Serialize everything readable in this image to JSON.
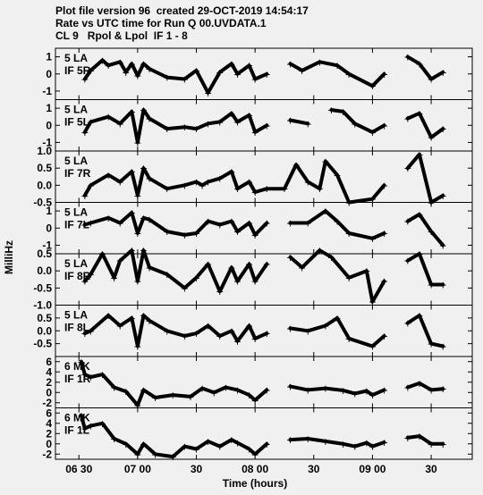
{
  "header": {
    "line1": "Plot file version 96  created 29-OCT-2019 14:54:17",
    "line2": "Rate vs UTC time for Run Q 00.UVDATA.1",
    "line3": "CL 9   Rpol & Lpol  IF 1 - 8"
  },
  "chart_data": {
    "type": "scatter",
    "xlabel": "Time (hours)",
    "ylabel": "MilliHz",
    "x_ticks": [
      "06 30",
      "07 00",
      "30",
      "08 00",
      "30",
      "09 00",
      "30"
    ],
    "x_tick_values": [
      6.5,
      7.0,
      7.5,
      8.0,
      8.5,
      9.0,
      9.5
    ],
    "xlim": [
      6.3,
      9.85
    ],
    "panels": [
      {
        "label1": "5 LA",
        "label2": "IF 5R",
        "ylim": [
          -1.5,
          1.5
        ],
        "yticks": [
          1,
          0,
          -1
        ],
        "ytick_labels": [
          "1",
          "0",
          "-1"
        ],
        "points": [
          [
            6.55,
            -0.3
          ],
          [
            6.6,
            0.2
          ],
          [
            6.7,
            0.8
          ],
          [
            6.75,
            0.5
          ],
          [
            6.85,
            0.7
          ],
          [
            6.9,
            0.1
          ],
          [
            6.95,
            0.6
          ],
          [
            7.0,
            -0.1
          ],
          [
            7.05,
            0.6
          ],
          [
            7.1,
            0.3
          ],
          [
            7.25,
            -0.2
          ],
          [
            7.4,
            -0.3
          ],
          [
            7.5,
            0.2
          ],
          [
            7.6,
            -1.1
          ],
          [
            7.7,
            0.1
          ],
          [
            7.8,
            0.6
          ],
          [
            7.85,
            0.0
          ],
          [
            7.95,
            0.5
          ],
          [
            8.0,
            -0.3
          ],
          [
            8.1,
            0.0
          ],
          [
            8.3,
            0.6
          ],
          [
            8.4,
            0.2
          ],
          [
            8.55,
            0.7
          ],
          [
            8.7,
            0.5
          ],
          [
            8.8,
            0.0
          ],
          [
            9.0,
            -0.7
          ],
          [
            9.1,
            0.0
          ],
          [
            9.3,
            1.0
          ],
          [
            9.4,
            0.6
          ],
          [
            9.5,
            -0.3
          ],
          [
            9.6,
            0.1
          ]
        ]
      },
      {
        "label1": "5 LA",
        "label2": "IF 5L",
        "ylim": [
          -1.5,
          1.5
        ],
        "yticks": [
          1,
          0,
          -1
        ],
        "ytick_labels": [
          "1",
          "0",
          "-1"
        ],
        "points": [
          [
            6.55,
            -0.4
          ],
          [
            6.6,
            0.2
          ],
          [
            6.75,
            0.5
          ],
          [
            6.85,
            0.1
          ],
          [
            6.95,
            0.8
          ],
          [
            7.0,
            -1.0
          ],
          [
            7.05,
            0.9
          ],
          [
            7.1,
            0.4
          ],
          [
            7.25,
            -0.2
          ],
          [
            7.4,
            -0.1
          ],
          [
            7.5,
            -0.2
          ],
          [
            7.6,
            0.1
          ],
          [
            7.7,
            0.2
          ],
          [
            7.8,
            0.7
          ],
          [
            7.85,
            0.2
          ],
          [
            7.95,
            0.6
          ],
          [
            8.0,
            -0.4
          ],
          [
            8.1,
            0.0
          ],
          [
            8.3,
            0.3
          ],
          [
            8.45,
            0.1
          ],
          [
            8.65,
            0.9
          ],
          [
            8.75,
            0.8
          ],
          [
            8.85,
            0.1
          ],
          [
            9.0,
            -0.4
          ],
          [
            9.1,
            0.0
          ],
          [
            9.3,
            0.4
          ],
          [
            9.4,
            0.7
          ],
          [
            9.5,
            -0.7
          ],
          [
            9.6,
            -0.2
          ]
        ]
      },
      {
        "label1": "5 LA",
        "label2": "IF 7R",
        "ylim": [
          -0.5,
          1.0
        ],
        "yticks": [
          1.0,
          0.5,
          0.0,
          -0.5
        ],
        "ytick_labels": [
          "1.0",
          "0.5",
          "0.0",
          "-0.5"
        ],
        "points": [
          [
            6.55,
            -0.3
          ],
          [
            6.6,
            0.0
          ],
          [
            6.75,
            0.3
          ],
          [
            6.85,
            0.1
          ],
          [
            6.95,
            0.4
          ],
          [
            7.0,
            -0.3
          ],
          [
            7.05,
            0.5
          ],
          [
            7.1,
            0.2
          ],
          [
            7.25,
            -0.1
          ],
          [
            7.4,
            0.0
          ],
          [
            7.5,
            0.1
          ],
          [
            7.55,
            0.0
          ],
          [
            7.6,
            0.1
          ],
          [
            7.7,
            0.2
          ],
          [
            7.8,
            0.4
          ],
          [
            7.85,
            -0.1
          ],
          [
            7.95,
            0.1
          ],
          [
            8.0,
            -0.2
          ],
          [
            8.1,
            -0.1
          ],
          [
            8.25,
            -0.1
          ],
          [
            8.35,
            0.6
          ],
          [
            8.45,
            0.1
          ],
          [
            8.55,
            -0.1
          ],
          [
            8.6,
            0.7
          ],
          [
            8.7,
            0.3
          ],
          [
            8.8,
            -0.5
          ],
          [
            9.0,
            -0.4
          ],
          [
            9.1,
            0.0
          ],
          [
            9.3,
            0.5
          ],
          [
            9.4,
            0.9
          ],
          [
            9.5,
            -0.5
          ],
          [
            9.6,
            -0.3
          ]
        ]
      },
      {
        "label1": "5 LA",
        "label2": "IF 7L",
        "ylim": [
          -1.5,
          1.5
        ],
        "yticks": [
          1,
          0,
          -1
        ],
        "ytick_labels": [
          "1",
          "0",
          "-1"
        ],
        "points": [
          [
            6.55,
            0.2
          ],
          [
            6.6,
            0.3
          ],
          [
            6.75,
            0.6
          ],
          [
            6.85,
            0.3
          ],
          [
            6.95,
            0.9
          ],
          [
            7.0,
            -0.3
          ],
          [
            7.05,
            0.6
          ],
          [
            7.1,
            0.5
          ],
          [
            7.25,
            -0.2
          ],
          [
            7.4,
            -0.4
          ],
          [
            7.5,
            -0.3
          ],
          [
            7.6,
            0.4
          ],
          [
            7.7,
            0.2
          ],
          [
            7.8,
            0.4
          ],
          [
            7.85,
            -0.2
          ],
          [
            7.95,
            0.3
          ],
          [
            8.0,
            -0.4
          ],
          [
            8.1,
            0.3
          ],
          [
            8.3,
            0.3
          ],
          [
            8.45,
            0.3
          ],
          [
            8.6,
            1.0
          ],
          [
            8.7,
            0.4
          ],
          [
            8.8,
            -0.3
          ],
          [
            9.0,
            -0.6
          ],
          [
            9.1,
            -0.3
          ],
          [
            9.3,
            0.4
          ],
          [
            9.4,
            0.8
          ],
          [
            9.5,
            -0.2
          ],
          [
            9.6,
            -1.0
          ]
        ]
      },
      {
        "label1": "5 LA",
        "label2": "IF 8R",
        "ylim": [
          -1.0,
          0.5
        ],
        "yticks": [
          0.5,
          0.0,
          -0.5,
          -1.0
        ],
        "ytick_labels": [
          "0.5",
          "0.0",
          "-0.5",
          "-1.0"
        ],
        "points": [
          [
            6.55,
            -0.3
          ],
          [
            6.6,
            -0.1
          ],
          [
            6.7,
            0.5
          ],
          [
            6.8,
            -0.2
          ],
          [
            6.85,
            0.3
          ],
          [
            6.95,
            0.6
          ],
          [
            7.0,
            -0.3
          ],
          [
            7.05,
            0.6
          ],
          [
            7.1,
            0.1
          ],
          [
            7.25,
            -0.1
          ],
          [
            7.4,
            -0.5
          ],
          [
            7.5,
            -0.2
          ],
          [
            7.6,
            0.2
          ],
          [
            7.7,
            -0.6
          ],
          [
            7.8,
            0.1
          ],
          [
            7.85,
            -0.3
          ],
          [
            7.95,
            0.2
          ],
          [
            8.0,
            -0.3
          ],
          [
            8.1,
            0.2
          ],
          [
            8.3,
            0.4
          ],
          [
            8.4,
            0.1
          ],
          [
            8.55,
            0.6
          ],
          [
            8.65,
            0.4
          ],
          [
            8.8,
            -0.2
          ],
          [
            8.95,
            0.0
          ],
          [
            9.0,
            -0.9
          ],
          [
            9.1,
            -0.3
          ],
          [
            9.3,
            0.3
          ],
          [
            9.4,
            0.5
          ],
          [
            9.5,
            -0.4
          ],
          [
            9.6,
            -0.4
          ]
        ]
      },
      {
        "label1": "5 LA",
        "label2": "IF 8L",
        "ylim": [
          -1.0,
          1.0
        ],
        "yticks": [
          0.5,
          0.0,
          -0.5
        ],
        "ytick_labels": [
          "0.5",
          "0.0",
          "-0.5"
        ],
        "points": [
          [
            6.55,
            -0.1
          ],
          [
            6.6,
            0.0
          ],
          [
            6.75,
            0.6
          ],
          [
            6.85,
            0.2
          ],
          [
            6.95,
            0.5
          ],
          [
            7.0,
            -0.6
          ],
          [
            7.05,
            0.6
          ],
          [
            7.1,
            0.4
          ],
          [
            7.25,
            0.0
          ],
          [
            7.4,
            -0.2
          ],
          [
            7.5,
            -0.1
          ],
          [
            7.6,
            0.2
          ],
          [
            7.7,
            -0.2
          ],
          [
            7.8,
            0.0
          ],
          [
            7.85,
            -0.4
          ],
          [
            7.95,
            0.2
          ],
          [
            8.0,
            -0.3
          ],
          [
            8.1,
            -0.1
          ],
          [
            8.3,
            0.1
          ],
          [
            8.45,
            0.0
          ],
          [
            8.6,
            0.2
          ],
          [
            8.7,
            0.5
          ],
          [
            8.8,
            -0.3
          ],
          [
            9.0,
            -0.6
          ],
          [
            9.1,
            -0.2
          ],
          [
            9.3,
            0.3
          ],
          [
            9.4,
            0.6
          ],
          [
            9.5,
            -0.5
          ],
          [
            9.6,
            -0.6
          ]
        ]
      },
      {
        "label1": "6 MK",
        "label2": "IF 1R",
        "ylim": [
          -3,
          7
        ],
        "yticks": [
          6,
          4,
          2,
          0,
          -2
        ],
        "ytick_labels": [
          "6",
          "4",
          "2",
          "0",
          "-2"
        ],
        "points": [
          [
            6.52,
            6.0
          ],
          [
            6.55,
            3.5
          ],
          [
            6.6,
            3.0
          ],
          [
            6.7,
            3.5
          ],
          [
            6.8,
            1.0
          ],
          [
            6.9,
            0.2
          ],
          [
            7.0,
            -2.5
          ],
          [
            7.05,
            0.5
          ],
          [
            7.15,
            -1.0
          ],
          [
            7.3,
            -0.5
          ],
          [
            7.45,
            -0.8
          ],
          [
            7.55,
            0.8
          ],
          [
            7.65,
            0.0
          ],
          [
            7.75,
            1.0
          ],
          [
            7.85,
            0.5
          ],
          [
            7.95,
            -0.5
          ],
          [
            8.0,
            -1.5
          ],
          [
            8.1,
            0.5
          ],
          [
            8.3,
            1.2
          ],
          [
            8.45,
            0.5
          ],
          [
            8.6,
            0.8
          ],
          [
            8.75,
            0.4
          ],
          [
            8.85,
            -0.2
          ],
          [
            8.95,
            0.3
          ],
          [
            9.0,
            -0.5
          ],
          [
            9.1,
            0.5
          ],
          [
            9.3,
            1.0
          ],
          [
            9.4,
            1.8
          ],
          [
            9.5,
            0.5
          ],
          [
            9.6,
            0.7
          ]
        ]
      },
      {
        "label1": "6 MK",
        "label2": "IF 1L",
        "ylim": [
          -3,
          7
        ],
        "yticks": [
          6,
          4,
          2,
          0,
          -2
        ],
        "ytick_labels": [
          "6",
          "4",
          "2",
          "0",
          "-2"
        ],
        "points": [
          [
            6.52,
            5.5
          ],
          [
            6.55,
            3.0
          ],
          [
            6.6,
            3.5
          ],
          [
            6.7,
            4.0
          ],
          [
            6.8,
            1.0
          ],
          [
            6.9,
            0.0
          ],
          [
            7.0,
            -2.0
          ],
          [
            7.05,
            0.0
          ],
          [
            7.15,
            -2.0
          ],
          [
            7.3,
            -2.5
          ],
          [
            7.4,
            -0.5
          ],
          [
            7.5,
            -1.0
          ],
          [
            7.6,
            0.5
          ],
          [
            7.7,
            -0.5
          ],
          [
            7.8,
            0.8
          ],
          [
            7.85,
            0.2
          ],
          [
            7.95,
            -1.0
          ],
          [
            8.0,
            -2.0
          ],
          [
            8.1,
            0.0
          ],
          [
            8.3,
            0.8
          ],
          [
            8.45,
            1.0
          ],
          [
            8.6,
            0.5
          ],
          [
            8.75,
            0.0
          ],
          [
            8.85,
            -0.5
          ],
          [
            8.95,
            0.2
          ],
          [
            9.0,
            -0.5
          ],
          [
            9.1,
            0.3
          ],
          [
            9.3,
            1.2
          ],
          [
            9.4,
            1.5
          ],
          [
            9.5,
            0.0
          ],
          [
            9.6,
            0.0
          ]
        ]
      }
    ]
  }
}
